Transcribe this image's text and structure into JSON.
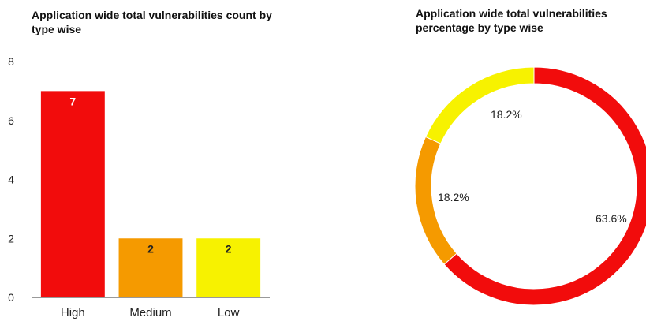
{
  "chart_data": [
    {
      "type": "bar",
      "title": "Application wide total vulnerabilities count by type wise",
      "xlabel": "",
      "ylabel": "",
      "categories": [
        "High",
        "Medium",
        "Low"
      ],
      "values": [
        7,
        2,
        2
      ],
      "data_labels": [
        "7",
        "2",
        "2"
      ],
      "colors": [
        "#f20c0c",
        "#f59a00",
        "#f7f200"
      ],
      "data_label_colors": [
        "#ffffff",
        "#222222",
        "#222222"
      ],
      "ylim": [
        0,
        8
      ],
      "yticks": [
        "0",
        "2",
        "4",
        "6",
        "8"
      ],
      "grid": false,
      "legend": "none"
    },
    {
      "type": "pie",
      "subtype": "donut",
      "title": "Application wide total vulnerabilities percentage by type wise",
      "categories": [
        "High",
        "Medium",
        "Low"
      ],
      "values": [
        63.6,
        18.2,
        18.2
      ],
      "labels": [
        "63.6%",
        "18.2%",
        "18.2%"
      ],
      "colors": [
        "#f20c0c",
        "#f59a00",
        "#f7f200"
      ],
      "legend": "none"
    }
  ]
}
